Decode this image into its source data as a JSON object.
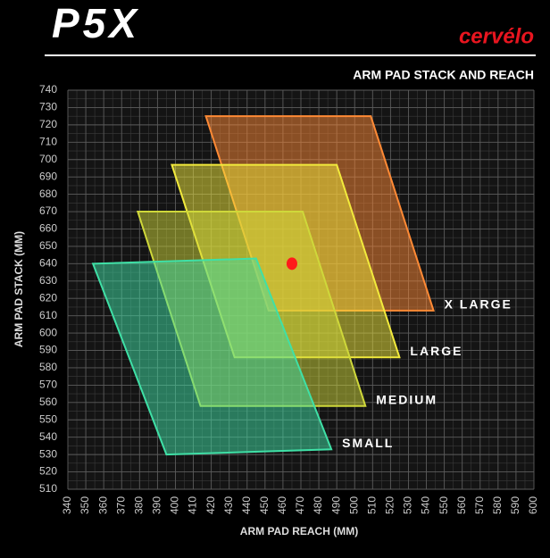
{
  "chart_data": {
    "type": "polygon",
    "logo": "P5X",
    "brand": "cervélo",
    "title": "ARM PAD STACK AND REACH",
    "x_label": "ARM PAD REACH (MM)",
    "y_label": "ARM PAD STACK (MM)",
    "xlim": [
      340,
      600
    ],
    "xticks": [
      340,
      350,
      360,
      370,
      380,
      390,
      400,
      410,
      420,
      430,
      440,
      450,
      460,
      470,
      480,
      490,
      500,
      510,
      520,
      530,
      540,
      550,
      560,
      570,
      580,
      590,
      600
    ],
    "ylim": [
      510,
      740
    ],
    "yticks": [
      510,
      520,
      530,
      540,
      550,
      560,
      570,
      580,
      590,
      600,
      610,
      620,
      630,
      640,
      650,
      660,
      670,
      680,
      690,
      700,
      710,
      720,
      730,
      740
    ],
    "grid": true,
    "series": [
      {
        "name": "X LARGE",
        "color": "#ff8a35",
        "x": [
          417,
          509,
          544,
          452
        ],
        "y": [
          725,
          725,
          613,
          613
        ]
      },
      {
        "name": "LARGE",
        "color": "#f2ea3c",
        "x": [
          398,
          490,
          525,
          433
        ],
        "y": [
          697,
          697,
          586,
          586
        ]
      },
      {
        "name": "MEDIUM",
        "color": "#cfd83a",
        "x": [
          379,
          471,
          506,
          414
        ],
        "y": [
          670,
          670,
          558,
          558
        ]
      },
      {
        "name": "SMALL",
        "color": "#3fe0a6",
        "x": [
          354,
          445,
          487,
          395
        ],
        "y": [
          640,
          643,
          533,
          530
        ]
      }
    ],
    "points": [
      {
        "x": 465,
        "y": 640,
        "color": "#ff1a1a"
      }
    ]
  }
}
